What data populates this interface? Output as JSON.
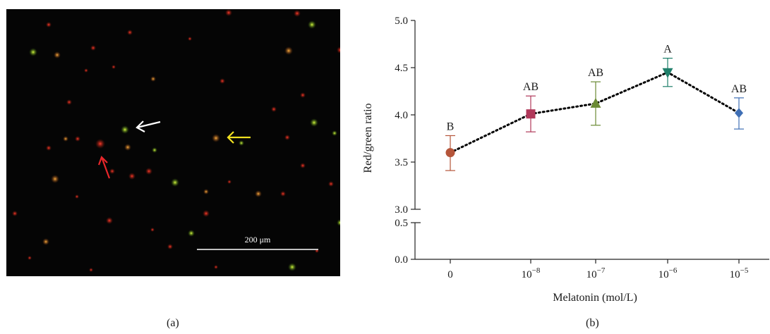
{
  "panel_a": {
    "caption": "(a)",
    "scale_bar_label": "200 μm"
  },
  "panel_b": {
    "caption": "(b)"
  },
  "chart_data": {
    "type": "line",
    "xlabel": "Melatonin (mol/L)",
    "ylabel": "Red/green ratio",
    "categories": [
      {
        "base": "0",
        "exp": ""
      },
      {
        "base": "10",
        "exp": "−8"
      },
      {
        "base": "10",
        "exp": "−7"
      },
      {
        "base": "10",
        "exp": "−6"
      },
      {
        "base": "10",
        "exp": "−5"
      }
    ],
    "series": [
      {
        "values": [
          3.6,
          4.01,
          4.12,
          4.45,
          4.02
        ],
        "error_low": [
          3.41,
          3.82,
          3.89,
          4.3,
          3.85
        ],
        "error_high": [
          3.78,
          4.2,
          4.35,
          4.6,
          4.18
        ],
        "letters": [
          "B",
          "AB",
          "AB",
          "A",
          "AB"
        ],
        "marker_colors": [
          "#b5553a",
          "#b0385a",
          "#6a8a34",
          "#1f7f6a",
          "#3f6fb5"
        ],
        "markers": [
          "circle",
          "square",
          "triangle-up",
          "triangle-down",
          "diamond"
        ],
        "line_color": "#000000",
        "line_style": "dotted"
      }
    ],
    "yticks_upper": [
      3.0,
      3.5,
      4.0,
      4.5,
      5.0
    ],
    "yticks_lower": [
      0.0,
      0.5
    ],
    "ylim_upper": [
      3.0,
      5.0
    ],
    "ylim_lower": [
      0.0,
      0.5
    ],
    "axis_break": true
  }
}
